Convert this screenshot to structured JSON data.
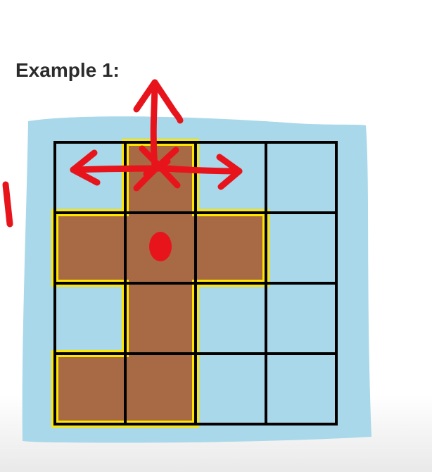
{
  "title": "Example 1:",
  "grid": {
    "rows": 4,
    "cols": 4,
    "cells": [
      [
        "water",
        "land",
        "water",
        "water"
      ],
      [
        "land",
        "land",
        "land",
        "water"
      ],
      [
        "water",
        "land",
        "water",
        "water"
      ],
      [
        "land",
        "land",
        "water",
        "water"
      ]
    ]
  },
  "annotations": {
    "start_cell": [
      0,
      1
    ],
    "dot_cell": [
      1,
      1
    ],
    "arrows": [
      "up",
      "left",
      "right"
    ],
    "margin_mark": "1"
  },
  "colors": {
    "water": "#a8d8ea",
    "land": "#a86a45",
    "outline": "#ffe600",
    "gridline": "#000000",
    "ink": "#e8141c"
  }
}
